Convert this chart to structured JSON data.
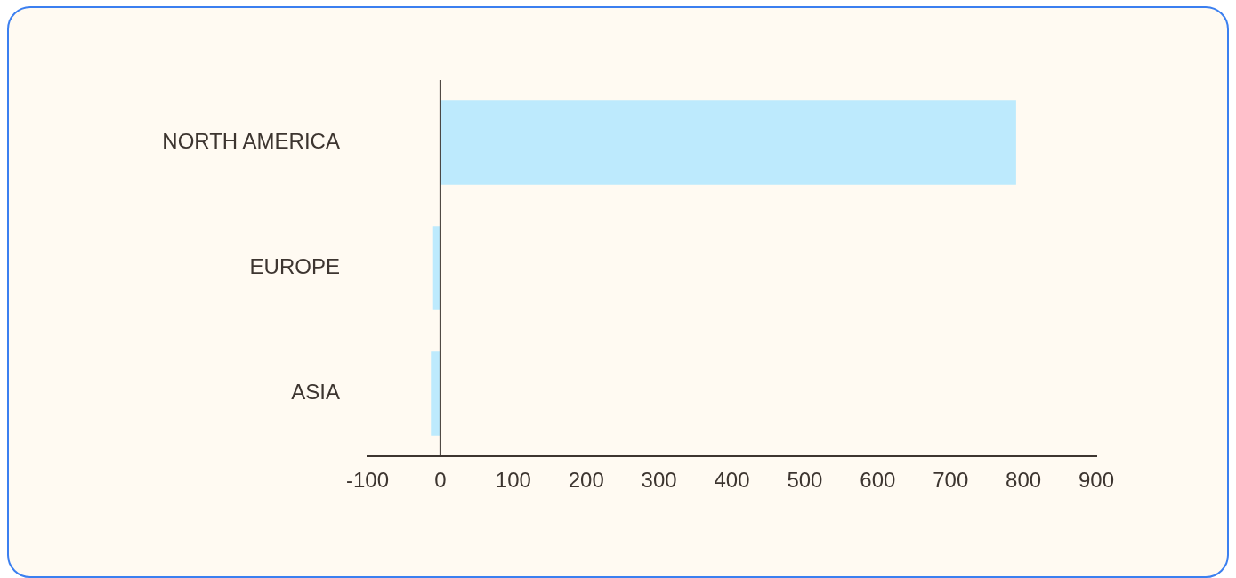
{
  "chart_data": {
    "type": "bar",
    "orientation": "horizontal",
    "categories": [
      "NORTH AMERICA",
      "EUROPE",
      "ASIA"
    ],
    "values": [
      790,
      -10,
      -13
    ],
    "color": "#bdeafd",
    "xlim": [
      -100,
      900
    ],
    "xticks": [
      -100,
      0,
      100,
      200,
      300,
      400,
      500,
      600,
      700,
      800,
      900
    ],
    "ref_lines": [
      {
        "axis": "x",
        "value": 0,
        "color": "#3d3530"
      }
    ],
    "grid": false,
    "legend": false
  }
}
